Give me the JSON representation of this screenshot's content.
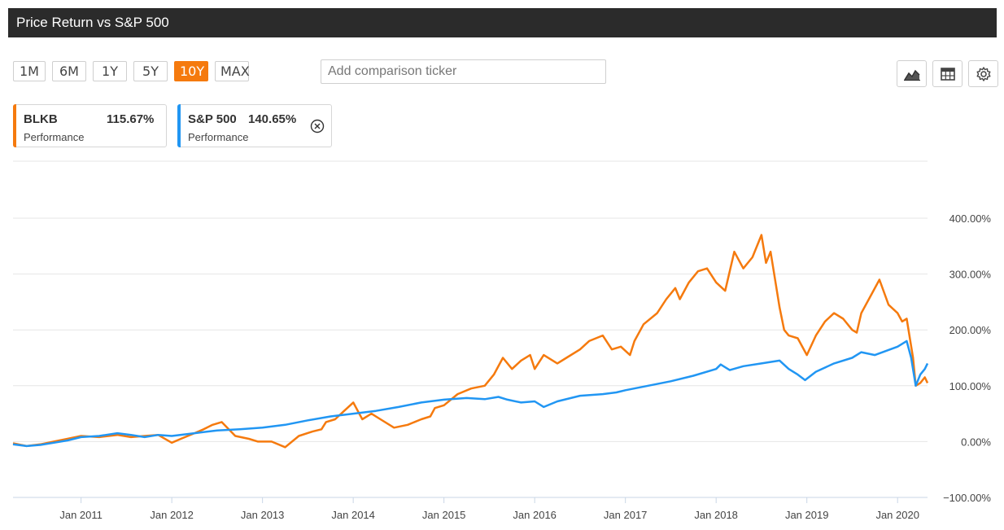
{
  "header": {
    "title": "Price Return vs S&P 500"
  },
  "ranges": [
    {
      "label": "1M",
      "active": false
    },
    {
      "label": "6M",
      "active": false
    },
    {
      "label": "1Y",
      "active": false
    },
    {
      "label": "5Y",
      "active": false
    },
    {
      "label": "10Y",
      "active": true
    },
    {
      "label": "MAX",
      "active": false
    }
  ],
  "comparison": {
    "placeholder": "Add comparison ticker",
    "value": ""
  },
  "toolbar": {
    "icons": [
      "area-chart-icon",
      "table-icon",
      "gear-icon"
    ]
  },
  "legend_cards": [
    {
      "ticker": "BLKB",
      "value": "115.67%",
      "subtitle": "Performance",
      "color": "#f57a0e"
    },
    {
      "ticker": "S&P 500",
      "value": "140.65%",
      "subtitle": "Performance",
      "color": "#2196f3",
      "removable": true
    }
  ],
  "chart_data": {
    "type": "line",
    "title": "",
    "xlabel": "",
    "ylabel": "",
    "x_range": [
      2010.25,
      2020.33
    ],
    "ylim": [
      -100,
      400
    ],
    "grid": true,
    "y_ticks": [
      "400.00%",
      "300.00%",
      "200.00%",
      "100.00%",
      "0.00%",
      "−100.00%"
    ],
    "y_tick_values": [
      400,
      300,
      200,
      100,
      0,
      -100
    ],
    "x_ticks": [
      "Jan 2011",
      "Jan 2012",
      "Jan 2013",
      "Jan 2014",
      "Jan 2015",
      "Jan 2016",
      "Jan 2017",
      "Jan 2018",
      "Jan 2019",
      "Jan 2020"
    ],
    "x_tick_values": [
      2011,
      2012,
      2013,
      2014,
      2015,
      2016,
      2017,
      2018,
      2019,
      2020
    ],
    "series": [
      {
        "name": "BLKB",
        "color": "#f57a0e",
        "x": [
          2010.25,
          2010.4,
          2010.55,
          2010.7,
          2010.85,
          2011.0,
          2011.2,
          2011.4,
          2011.55,
          2011.7,
          2011.85,
          2012.0,
          2012.1,
          2012.25,
          2012.35,
          2012.45,
          2012.55,
          2012.7,
          2012.85,
          2012.95,
          2013.1,
          2013.25,
          2013.4,
          2013.55,
          2013.65,
          2013.7,
          2013.8,
          2013.9,
          2014.0,
          2014.1,
          2014.2,
          2014.3,
          2014.45,
          2014.6,
          2014.75,
          2014.85,
          2014.9,
          2015.0,
          2015.15,
          2015.3,
          2015.45,
          2015.55,
          2015.65,
          2015.75,
          2015.85,
          2015.95,
          2016.0,
          2016.1,
          2016.25,
          2016.35,
          2016.5,
          2016.6,
          2016.75,
          2016.85,
          2016.95,
          2017.05,
          2017.1,
          2017.2,
          2017.35,
          2017.45,
          2017.55,
          2017.6,
          2017.7,
          2017.8,
          2017.9,
          2018.0,
          2018.1,
          2018.2,
          2018.3,
          2018.4,
          2018.5,
          2018.55,
          2018.6,
          2018.7,
          2018.75,
          2018.8,
          2018.9,
          2019.0,
          2019.1,
          2019.2,
          2019.3,
          2019.4,
          2019.5,
          2019.55,
          2019.6,
          2019.7,
          2019.8,
          2019.9,
          2020.0,
          2020.05,
          2020.1,
          2020.17,
          2020.2,
          2020.25,
          2020.3,
          2020.33
        ],
        "y": [
          -3,
          -8,
          -5,
          0,
          5,
          10,
          8,
          12,
          8,
          10,
          12,
          -2,
          5,
          15,
          22,
          30,
          35,
          10,
          5,
          0,
          0,
          -10,
          10,
          18,
          22,
          35,
          40,
          55,
          70,
          40,
          50,
          40,
          25,
          30,
          40,
          45,
          60,
          65,
          85,
          95,
          100,
          120,
          150,
          130,
          145,
          155,
          130,
          155,
          140,
          150,
          165,
          180,
          190,
          165,
          170,
          155,
          180,
          210,
          230,
          255,
          275,
          255,
          285,
          305,
          310,
          285,
          270,
          340,
          310,
          330,
          370,
          320,
          340,
          240,
          200,
          190,
          185,
          155,
          190,
          215,
          230,
          220,
          200,
          195,
          230,
          260,
          290,
          245,
          230,
          215,
          220,
          150,
          100,
          105,
          115,
          105
        ]
      },
      {
        "name": "S&P 500",
        "color": "#2196f3",
        "x": [
          2010.25,
          2010.4,
          2010.55,
          2010.7,
          2010.85,
          2011.0,
          2011.2,
          2011.4,
          2011.55,
          2011.7,
          2011.85,
          2012.0,
          2012.25,
          2012.5,
          2012.75,
          2013.0,
          2013.25,
          2013.5,
          2013.75,
          2014.0,
          2014.25,
          2014.5,
          2014.75,
          2015.0,
          2015.25,
          2015.45,
          2015.6,
          2015.7,
          2015.85,
          2016.0,
          2016.1,
          2016.25,
          2016.5,
          2016.75,
          2016.9,
          2017.0,
          2017.25,
          2017.5,
          2017.75,
          2018.0,
          2018.05,
          2018.15,
          2018.3,
          2018.5,
          2018.7,
          2018.8,
          2018.9,
          2018.98,
          2019.1,
          2019.3,
          2019.5,
          2019.6,
          2019.75,
          2020.0,
          2020.1,
          2020.15,
          2020.2,
          2020.25,
          2020.3,
          2020.33
        ],
        "y": [
          -5,
          -8,
          -6,
          -2,
          2,
          8,
          10,
          15,
          12,
          8,
          12,
          10,
          15,
          20,
          22,
          25,
          30,
          38,
          45,
          50,
          55,
          62,
          70,
          75,
          78,
          76,
          80,
          75,
          70,
          72,
          62,
          72,
          82,
          85,
          88,
          92,
          100,
          108,
          118,
          130,
          138,
          128,
          135,
          140,
          145,
          130,
          120,
          110,
          125,
          140,
          150,
          160,
          155,
          170,
          180,
          150,
          100,
          120,
          130,
          140
        ]
      }
    ]
  }
}
